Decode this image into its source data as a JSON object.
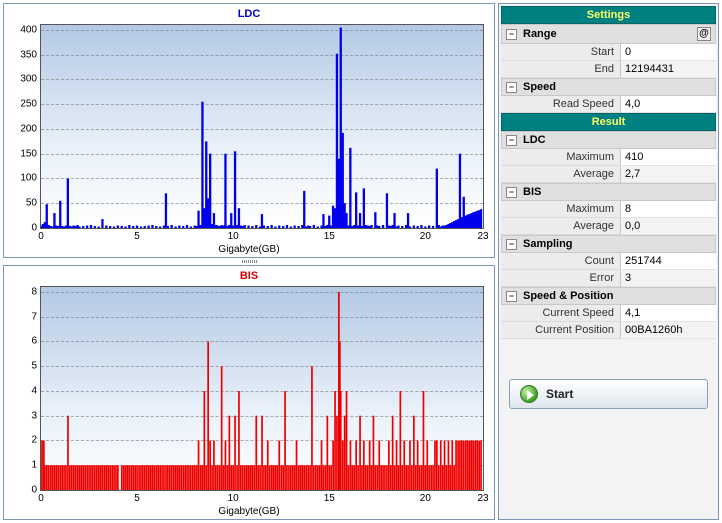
{
  "ldc_chart": {
    "title": "LDC",
    "type": "bar",
    "xlabel": "Gigabyte(GB)",
    "title_color": "#0000cc",
    "series_color": "#0000ee",
    "background_gradient": [
      "#b3c9e4",
      "#ffffff"
    ],
    "grid_color": "#777777",
    "xlim": [
      0,
      23
    ],
    "ylim": [
      0,
      410
    ],
    "xticks": [
      0,
      5,
      10,
      15,
      20,
      23
    ],
    "yticks": [
      0,
      50,
      100,
      150,
      200,
      250,
      300,
      350,
      400
    ],
    "data": [
      [
        0.0,
        5
      ],
      [
        0.1,
        8
      ],
      [
        0.2,
        12
      ],
      [
        0.3,
        48
      ],
      [
        0.4,
        6
      ],
      [
        0.5,
        4
      ],
      [
        0.6,
        3
      ],
      [
        0.7,
        30
      ],
      [
        0.8,
        5
      ],
      [
        0.9,
        4
      ],
      [
        1.0,
        55
      ],
      [
        1.1,
        4
      ],
      [
        1.2,
        3
      ],
      [
        1.3,
        5
      ],
      [
        1.4,
        100
      ],
      [
        1.5,
        4
      ],
      [
        1.6,
        3
      ],
      [
        1.7,
        5
      ],
      [
        1.8,
        4
      ],
      [
        1.9,
        6
      ],
      [
        2.0,
        3
      ],
      [
        2.2,
        4
      ],
      [
        2.4,
        5
      ],
      [
        2.6,
        6
      ],
      [
        2.8,
        4
      ],
      [
        3.0,
        3
      ],
      [
        3.2,
        18
      ],
      [
        3.4,
        5
      ],
      [
        3.6,
        4
      ],
      [
        3.8,
        3
      ],
      [
        4.0,
        5
      ],
      [
        4.2,
        4
      ],
      [
        4.4,
        3
      ],
      [
        4.6,
        6
      ],
      [
        4.8,
        4
      ],
      [
        5.0,
        5
      ],
      [
        5.2,
        3
      ],
      [
        5.4,
        4
      ],
      [
        5.6,
        5
      ],
      [
        5.8,
        6
      ],
      [
        6.0,
        4
      ],
      [
        6.2,
        3
      ],
      [
        6.4,
        5
      ],
      [
        6.5,
        70
      ],
      [
        6.6,
        4
      ],
      [
        6.8,
        6
      ],
      [
        7.0,
        3
      ],
      [
        7.2,
        5
      ],
      [
        7.4,
        4
      ],
      [
        7.6,
        6
      ],
      [
        7.8,
        3
      ],
      [
        8.0,
        5
      ],
      [
        8.1,
        4
      ],
      [
        8.2,
        35
      ],
      [
        8.3,
        6
      ],
      [
        8.4,
        255
      ],
      [
        8.5,
        40
      ],
      [
        8.6,
        175
      ],
      [
        8.7,
        60
      ],
      [
        8.8,
        150
      ],
      [
        8.9,
        8
      ],
      [
        9.0,
        30
      ],
      [
        9.1,
        6
      ],
      [
        9.2,
        5
      ],
      [
        9.3,
        4
      ],
      [
        9.4,
        6
      ],
      [
        9.5,
        5
      ],
      [
        9.6,
        150
      ],
      [
        9.7,
        4
      ],
      [
        9.8,
        6
      ],
      [
        9.9,
        30
      ],
      [
        10.0,
        5
      ],
      [
        10.1,
        155
      ],
      [
        10.2,
        6
      ],
      [
        10.3,
        40
      ],
      [
        10.4,
        5
      ],
      [
        10.5,
        4
      ],
      [
        10.6,
        6
      ],
      [
        10.8,
        5
      ],
      [
        11.0,
        4
      ],
      [
        11.2,
        6
      ],
      [
        11.4,
        3
      ],
      [
        11.5,
        28
      ],
      [
        11.6,
        5
      ],
      [
        11.8,
        4
      ],
      [
        12.0,
        6
      ],
      [
        12.2,
        3
      ],
      [
        12.4,
        5
      ],
      [
        12.6,
        4
      ],
      [
        12.8,
        6
      ],
      [
        13.0,
        3
      ],
      [
        13.2,
        5
      ],
      [
        13.4,
        4
      ],
      [
        13.6,
        6
      ],
      [
        13.7,
        75
      ],
      [
        13.8,
        3
      ],
      [
        13.9,
        5
      ],
      [
        14.0,
        4
      ],
      [
        14.2,
        6
      ],
      [
        14.4,
        3
      ],
      [
        14.6,
        5
      ],
      [
        14.7,
        28
      ],
      [
        14.8,
        4
      ],
      [
        14.9,
        6
      ],
      [
        15.0,
        25
      ],
      [
        15.1,
        5
      ],
      [
        15.2,
        45
      ],
      [
        15.3,
        40
      ],
      [
        15.4,
        352
      ],
      [
        15.5,
        140
      ],
      [
        15.6,
        405
      ],
      [
        15.7,
        192
      ],
      [
        15.8,
        50
      ],
      [
        15.9,
        30
      ],
      [
        16.0,
        5
      ],
      [
        16.1,
        162
      ],
      [
        16.2,
        4
      ],
      [
        16.3,
        6
      ],
      [
        16.4,
        72
      ],
      [
        16.5,
        5
      ],
      [
        16.6,
        30
      ],
      [
        16.7,
        4
      ],
      [
        16.8,
        80
      ],
      [
        16.9,
        6
      ],
      [
        17.0,
        5
      ],
      [
        17.1,
        4
      ],
      [
        17.2,
        6
      ],
      [
        17.4,
        32
      ],
      [
        17.5,
        5
      ],
      [
        17.6,
        4
      ],
      [
        17.8,
        6
      ],
      [
        18.0,
        70
      ],
      [
        18.1,
        5
      ],
      [
        18.2,
        4
      ],
      [
        18.3,
        6
      ],
      [
        18.4,
        30
      ],
      [
        18.5,
        3
      ],
      [
        18.6,
        5
      ],
      [
        18.8,
        4
      ],
      [
        19.0,
        6
      ],
      [
        19.1,
        30
      ],
      [
        19.2,
        3
      ],
      [
        19.4,
        5
      ],
      [
        19.6,
        4
      ],
      [
        19.8,
        6
      ],
      [
        20.0,
        3
      ],
      [
        20.2,
        5
      ],
      [
        20.4,
        4
      ],
      [
        20.6,
        120
      ],
      [
        20.7,
        6
      ],
      [
        20.8,
        3
      ],
      [
        20.9,
        5
      ],
      [
        21.0,
        5
      ],
      [
        21.1,
        6
      ],
      [
        21.2,
        8
      ],
      [
        21.3,
        10
      ],
      [
        21.4,
        12
      ],
      [
        21.5,
        14
      ],
      [
        21.6,
        16
      ],
      [
        21.7,
        18
      ],
      [
        21.8,
        150
      ],
      [
        21.9,
        22
      ],
      [
        22.0,
        63
      ],
      [
        22.1,
        25
      ],
      [
        22.2,
        27
      ],
      [
        22.3,
        28
      ],
      [
        22.4,
        30
      ],
      [
        22.5,
        32
      ],
      [
        22.6,
        33
      ],
      [
        22.7,
        35
      ],
      [
        22.8,
        36
      ],
      [
        22.9,
        38
      ]
    ]
  },
  "bis_chart": {
    "title": "BIS",
    "type": "bar",
    "xlabel": "Gigabyte(GB)",
    "title_color": "#cc0000",
    "series_color": "#ee0000",
    "background_gradient": [
      "#b3c9e4",
      "#ffffff"
    ],
    "grid_color": "#777777",
    "xlim": [
      0,
      23
    ],
    "ylim": [
      0,
      8.2
    ],
    "xticks": [
      0,
      5,
      10,
      15,
      20,
      23
    ],
    "yticks": [
      0,
      1,
      2,
      3,
      4,
      5,
      6,
      7,
      8
    ],
    "data": [
      [
        0.0,
        2
      ],
      [
        0.1,
        2
      ],
      [
        0.15,
        2
      ],
      [
        0.2,
        1
      ],
      [
        0.3,
        1
      ],
      [
        0.4,
        1
      ],
      [
        0.5,
        1
      ],
      [
        0.6,
        1
      ],
      [
        0.7,
        1
      ],
      [
        0.8,
        1
      ],
      [
        0.9,
        1
      ],
      [
        1.0,
        1
      ],
      [
        1.1,
        1
      ],
      [
        1.2,
        1
      ],
      [
        1.3,
        1
      ],
      [
        1.4,
        3
      ],
      [
        1.5,
        1
      ],
      [
        1.6,
        1
      ],
      [
        1.7,
        1
      ],
      [
        1.8,
        1
      ],
      [
        1.9,
        1
      ],
      [
        2.0,
        1
      ],
      [
        2.1,
        1
      ],
      [
        2.2,
        1
      ],
      [
        2.3,
        1
      ],
      [
        2.4,
        1
      ],
      [
        2.5,
        1
      ],
      [
        2.6,
        1
      ],
      [
        2.7,
        1
      ],
      [
        2.8,
        1
      ],
      [
        2.9,
        1
      ],
      [
        3.0,
        1
      ],
      [
        3.1,
        1
      ],
      [
        3.2,
        1
      ],
      [
        3.3,
        1
      ],
      [
        3.4,
        1
      ],
      [
        3.5,
        1
      ],
      [
        3.6,
        1
      ],
      [
        3.7,
        1
      ],
      [
        3.8,
        1
      ],
      [
        3.9,
        1
      ],
      [
        4.0,
        1
      ],
      [
        4.05,
        0
      ],
      [
        4.1,
        0
      ],
      [
        4.15,
        0
      ],
      [
        4.2,
        1
      ],
      [
        4.3,
        1
      ],
      [
        4.4,
        1
      ],
      [
        4.5,
        1
      ],
      [
        4.6,
        1
      ],
      [
        4.7,
        1
      ],
      [
        4.8,
        1
      ],
      [
        4.9,
        1
      ],
      [
        5.0,
        1
      ],
      [
        5.1,
        1
      ],
      [
        5.2,
        1
      ],
      [
        5.3,
        1
      ],
      [
        5.4,
        1
      ],
      [
        5.5,
        1
      ],
      [
        5.6,
        1
      ],
      [
        5.7,
        1
      ],
      [
        5.8,
        1
      ],
      [
        5.9,
        1
      ],
      [
        6.0,
        1
      ],
      [
        6.1,
        1
      ],
      [
        6.2,
        1
      ],
      [
        6.3,
        1
      ],
      [
        6.4,
        1
      ],
      [
        6.5,
        1
      ],
      [
        6.6,
        1
      ],
      [
        6.7,
        1
      ],
      [
        6.8,
        1
      ],
      [
        6.9,
        1
      ],
      [
        7.0,
        1
      ],
      [
        7.1,
        1
      ],
      [
        7.2,
        1
      ],
      [
        7.3,
        1
      ],
      [
        7.4,
        1
      ],
      [
        7.5,
        1
      ],
      [
        7.6,
        1
      ],
      [
        7.7,
        1
      ],
      [
        7.8,
        1
      ],
      [
        7.9,
        1
      ],
      [
        8.0,
        1
      ],
      [
        8.1,
        1
      ],
      [
        8.2,
        2
      ],
      [
        8.3,
        1
      ],
      [
        8.4,
        1
      ],
      [
        8.5,
        4
      ],
      [
        8.6,
        1
      ],
      [
        8.7,
        6
      ],
      [
        8.8,
        2
      ],
      [
        8.9,
        1
      ],
      [
        9.0,
        2
      ],
      [
        9.1,
        1
      ],
      [
        9.2,
        1
      ],
      [
        9.3,
        1
      ],
      [
        9.4,
        5
      ],
      [
        9.5,
        1
      ],
      [
        9.6,
        2
      ],
      [
        9.7,
        1
      ],
      [
        9.8,
        3
      ],
      [
        9.9,
        1
      ],
      [
        10.0,
        1
      ],
      [
        10.1,
        3
      ],
      [
        10.2,
        1
      ],
      [
        10.3,
        4
      ],
      [
        10.4,
        1
      ],
      [
        10.5,
        1
      ],
      [
        10.6,
        1
      ],
      [
        10.7,
        1
      ],
      [
        10.8,
        1
      ],
      [
        10.9,
        1
      ],
      [
        11.0,
        1
      ],
      [
        11.1,
        1
      ],
      [
        11.2,
        3
      ],
      [
        11.3,
        1
      ],
      [
        11.4,
        1
      ],
      [
        11.5,
        3
      ],
      [
        11.6,
        1
      ],
      [
        11.7,
        1
      ],
      [
        11.8,
        2
      ],
      [
        11.9,
        1
      ],
      [
        12.0,
        1
      ],
      [
        12.1,
        1
      ],
      [
        12.2,
        1
      ],
      [
        12.3,
        1
      ],
      [
        12.4,
        2
      ],
      [
        12.5,
        1
      ],
      [
        12.6,
        1
      ],
      [
        12.7,
        4
      ],
      [
        12.8,
        1
      ],
      [
        12.9,
        1
      ],
      [
        13.0,
        1
      ],
      [
        13.1,
        1
      ],
      [
        13.2,
        1
      ],
      [
        13.3,
        2
      ],
      [
        13.4,
        1
      ],
      [
        13.5,
        1
      ],
      [
        13.6,
        1
      ],
      [
        13.7,
        1
      ],
      [
        13.8,
        1
      ],
      [
        13.9,
        1
      ],
      [
        14.0,
        1
      ],
      [
        14.1,
        5
      ],
      [
        14.2,
        1
      ],
      [
        14.3,
        1
      ],
      [
        14.4,
        1
      ],
      [
        14.5,
        1
      ],
      [
        14.6,
        2
      ],
      [
        14.7,
        1
      ],
      [
        14.8,
        1
      ],
      [
        14.9,
        3
      ],
      [
        15.0,
        1
      ],
      [
        15.1,
        1
      ],
      [
        15.2,
        2
      ],
      [
        15.3,
        4
      ],
      [
        15.4,
        3
      ],
      [
        15.5,
        8
      ],
      [
        15.55,
        6
      ],
      [
        15.6,
        4
      ],
      [
        15.7,
        2
      ],
      [
        15.8,
        3
      ],
      [
        15.9,
        4
      ],
      [
        16.0,
        1
      ],
      [
        16.1,
        2
      ],
      [
        16.2,
        1
      ],
      [
        16.3,
        1
      ],
      [
        16.4,
        2
      ],
      [
        16.5,
        1
      ],
      [
        16.6,
        3
      ],
      [
        16.7,
        1
      ],
      [
        16.8,
        2
      ],
      [
        16.9,
        1
      ],
      [
        17.0,
        1
      ],
      [
        17.1,
        2
      ],
      [
        17.2,
        1
      ],
      [
        17.3,
        3
      ],
      [
        17.4,
        1
      ],
      [
        17.5,
        1
      ],
      [
        17.6,
        2
      ],
      [
        17.7,
        1
      ],
      [
        17.8,
        1
      ],
      [
        17.9,
        1
      ],
      [
        18.0,
        1
      ],
      [
        18.1,
        2
      ],
      [
        18.2,
        1
      ],
      [
        18.3,
        3
      ],
      [
        18.4,
        1
      ],
      [
        18.5,
        2
      ],
      [
        18.6,
        1
      ],
      [
        18.7,
        4
      ],
      [
        18.8,
        1
      ],
      [
        18.9,
        2
      ],
      [
        19.0,
        1
      ],
      [
        19.1,
        1
      ],
      [
        19.2,
        2
      ],
      [
        19.3,
        1
      ],
      [
        19.4,
        3
      ],
      [
        19.5,
        1
      ],
      [
        19.6,
        2
      ],
      [
        19.7,
        1
      ],
      [
        19.8,
        1
      ],
      [
        19.9,
        4
      ],
      [
        20.0,
        1
      ],
      [
        20.1,
        2
      ],
      [
        20.2,
        1
      ],
      [
        20.3,
        1
      ],
      [
        20.4,
        1
      ],
      [
        20.5,
        2
      ],
      [
        20.6,
        2
      ],
      [
        20.7,
        1
      ],
      [
        20.8,
        2
      ],
      [
        20.9,
        1
      ],
      [
        21.0,
        2
      ],
      [
        21.1,
        1
      ],
      [
        21.2,
        2
      ],
      [
        21.3,
        1
      ],
      [
        21.4,
        2
      ],
      [
        21.5,
        1
      ],
      [
        21.6,
        2
      ],
      [
        21.7,
        2
      ],
      [
        21.8,
        2
      ],
      [
        21.9,
        2
      ],
      [
        22.0,
        2
      ],
      [
        22.1,
        2
      ],
      [
        22.2,
        2
      ],
      [
        22.3,
        2
      ],
      [
        22.4,
        2
      ],
      [
        22.5,
        2
      ],
      [
        22.6,
        2
      ],
      [
        22.7,
        2
      ],
      [
        22.8,
        2
      ],
      [
        22.9,
        2
      ]
    ]
  },
  "settings": {
    "header": "Settings",
    "sections": {
      "range": {
        "label": "Range",
        "start_label": "Start",
        "start_value": "0",
        "end_label": "End",
        "end_value": "12194431"
      },
      "speed": {
        "label": "Speed",
        "read_speed_label": "Read Speed",
        "read_speed_value": "4,0"
      }
    }
  },
  "result": {
    "header": "Result",
    "sections": {
      "ldc": {
        "label": "LDC",
        "max_label": "Maximum",
        "max_value": "410",
        "avg_label": "Average",
        "avg_value": "2,7"
      },
      "bis": {
        "label": "BIS",
        "max_label": "Maximum",
        "max_value": "8",
        "avg_label": "Average",
        "avg_value": "0,0"
      },
      "sampling": {
        "label": "Sampling",
        "count_label": "Count",
        "count_value": "251744",
        "error_label": "Error",
        "error_value": "3"
      },
      "speedpos": {
        "label": "Speed & Position",
        "cs_label": "Current Speed",
        "cs_value": "4,1",
        "cp_label": "Current Position",
        "cp_value": "00BA1260h"
      }
    }
  },
  "start_button": {
    "label": "Start"
  }
}
